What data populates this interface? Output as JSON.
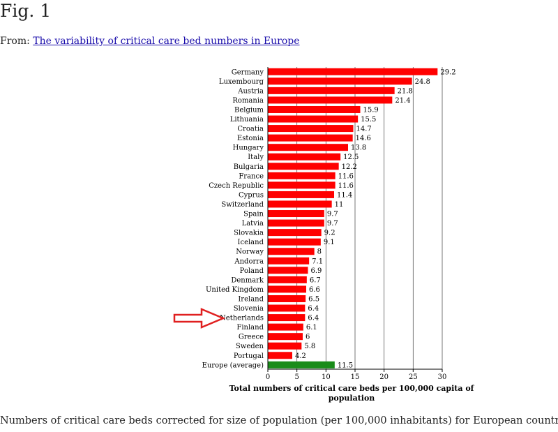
{
  "page": {
    "fig_label": "Fig. 1",
    "from_prefix": "From: ",
    "source_link": "The variability of critical care bed numbers in Europe",
    "caption": "Numbers of critical care beds corrected for size of population (per 100,000 inhabitants) for European countries"
  },
  "colors": {
    "bar": "#ff0000",
    "average_bar": "#1a8c1a",
    "arrow": "#e02020",
    "link": "#1a0dab"
  },
  "chart_data": {
    "type": "bar",
    "orientation": "horizontal",
    "title": "",
    "xlabel_line1": "Total numbers of critical care beds per 100,000 capita of",
    "xlabel_line2": "population",
    "ylabel": "",
    "xlim": [
      0,
      30
    ],
    "xticks": [
      0,
      5,
      10,
      15,
      20,
      25,
      30
    ],
    "grid": "vertical",
    "highlight": {
      "category": "Netherlands",
      "marker": "arrow"
    },
    "categories": [
      "Germany",
      "Luxembourg",
      "Austria",
      "Romania",
      "Belgium",
      "Lithuania",
      "Croatia",
      "Estonia",
      "Hungary",
      "Italy",
      "Bulgaria",
      "France",
      "Czech Republic",
      "Cyprus",
      "Switzerland",
      "Spain",
      "Latvia",
      "Slovakia",
      "Iceland",
      "Norway",
      "Andorra",
      "Poland",
      "Denmark",
      "United Kingdom",
      "Ireland",
      "Slovenia",
      "Netherlands",
      "Finland",
      "Greece",
      "Sweden",
      "Portugal",
      "Europe (average)"
    ],
    "values": [
      29.2,
      24.8,
      21.8,
      21.4,
      15.9,
      15.5,
      14.7,
      14.6,
      13.8,
      12.5,
      12.2,
      11.6,
      11.6,
      11.4,
      11,
      9.7,
      9.7,
      9.2,
      9.1,
      8,
      7.1,
      6.9,
      6.7,
      6.6,
      6.5,
      6.4,
      6.4,
      6.1,
      6,
      5.8,
      4.2,
      11.5
    ],
    "value_labels": [
      "29.2",
      "24.8",
      "21.8",
      "21.4",
      "15.9",
      "15.5",
      "14.7",
      "14.6",
      "13.8",
      "12.5",
      "12.2",
      "11.6",
      "11.6",
      "11.4",
      "11",
      "9.7",
      "9.7",
      "9.2",
      "9.1",
      "8",
      "7.1",
      "6.9",
      "6.7",
      "6.6",
      "6.5",
      "6.4",
      "6.4",
      "6.1",
      "6",
      "5.8",
      "4.2",
      "11.5"
    ],
    "average_category": "Europe (average)"
  }
}
